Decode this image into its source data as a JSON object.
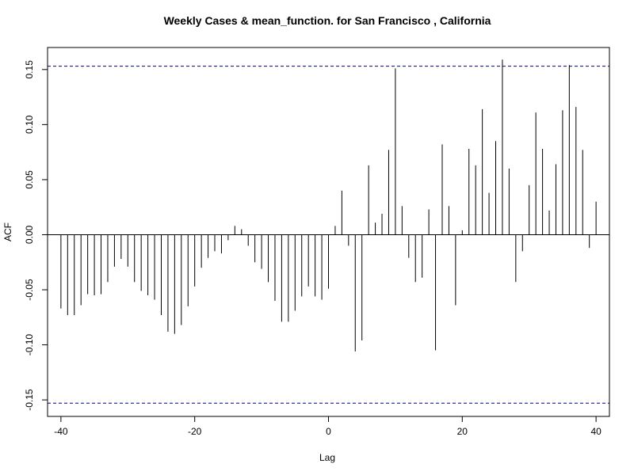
{
  "chart_data": {
    "type": "bar",
    "title": "Weekly Cases & mean_function. for San Francisco , California",
    "xlabel": "Lag",
    "ylabel": "ACF",
    "xlim": [
      -42,
      42
    ],
    "ylim": [
      -0.165,
      0.17
    ],
    "xticks": [
      -40,
      -20,
      0,
      20,
      40
    ],
    "yticks": [
      -0.15,
      -0.1,
      -0.05,
      0.0,
      0.05,
      0.1,
      0.15
    ],
    "ytick_labels": [
      "-0.15",
      "-0.10",
      "-0.05",
      "0.00",
      "0.05",
      "0.10",
      "0.15"
    ],
    "xtick_labels": [
      "-40",
      "-20",
      "0",
      "20",
      "40"
    ],
    "confidence_bound": 0.153,
    "colors": {
      "bars": "#000000",
      "bounds": "#00008b",
      "zero_line": "#000000"
    },
    "lags": [
      -40,
      -39,
      -38,
      -37,
      -36,
      -35,
      -34,
      -33,
      -32,
      -31,
      -30,
      -29,
      -28,
      -27,
      -26,
      -25,
      -24,
      -23,
      -22,
      -21,
      -20,
      -19,
      -18,
      -17,
      -16,
      -15,
      -14,
      -13,
      -12,
      -11,
      -10,
      -9,
      -8,
      -7,
      -6,
      -5,
      -4,
      -3,
      -2,
      -1,
      0,
      1,
      2,
      3,
      4,
      5,
      6,
      7,
      8,
      9,
      10,
      11,
      12,
      13,
      14,
      15,
      16,
      17,
      18,
      19,
      20,
      21,
      22,
      23,
      24,
      25,
      26,
      27,
      28,
      29,
      30,
      31,
      32,
      33,
      34,
      35,
      36,
      37,
      38,
      39,
      40
    ],
    "values": [
      -0.067,
      -0.073,
      -0.073,
      -0.064,
      -0.054,
      -0.055,
      -0.054,
      -0.043,
      -0.029,
      -0.022,
      -0.029,
      -0.043,
      -0.051,
      -0.055,
      -0.059,
      -0.073,
      -0.088,
      -0.09,
      -0.082,
      -0.065,
      -0.047,
      -0.03,
      -0.021,
      -0.015,
      -0.017,
      -0.005,
      0.008,
      0.005,
      -0.01,
      -0.025,
      -0.031,
      -0.043,
      -0.06,
      -0.079,
      -0.079,
      -0.069,
      -0.056,
      -0.047,
      -0.056,
      -0.059,
      -0.049,
      0.008,
      0.04,
      -0.01,
      -0.106,
      -0.096,
      0.063,
      0.011,
      0.019,
      0.077,
      0.151,
      0.026,
      -0.021,
      -0.043,
      -0.039,
      0.023,
      -0.105,
      0.082,
      0.026,
      -0.064,
      0.004,
      0.078,
      0.063,
      0.114,
      0.038,
      0.085,
      0.159,
      0.06,
      -0.043,
      -0.015,
      0.045,
      0.111,
      0.078,
      0.022,
      0.064,
      0.113,
      0.154,
      0.116,
      0.077,
      -0.012,
      0.03
    ]
  }
}
